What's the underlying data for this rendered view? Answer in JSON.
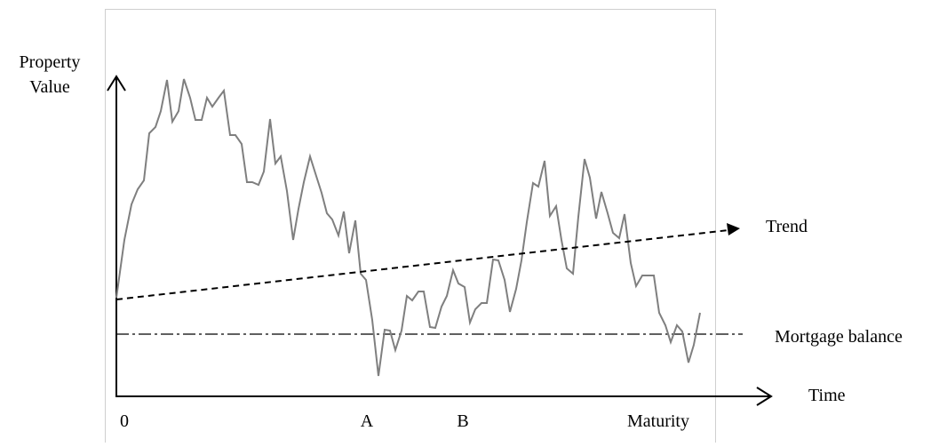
{
  "y_axis_label": [
    "Property",
    "Value"
  ],
  "x_axis_label": "Time",
  "lines": {
    "trend": "Trend",
    "mortgage": "Mortgage balance"
  },
  "x_points": [
    "0",
    "A",
    "B",
    "Maturity"
  ]
}
